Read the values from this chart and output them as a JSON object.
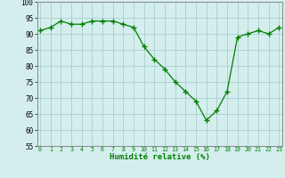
{
  "x": [
    0,
    1,
    2,
    3,
    4,
    5,
    6,
    7,
    8,
    9,
    10,
    11,
    12,
    13,
    14,
    15,
    16,
    17,
    18,
    19,
    20,
    21,
    22,
    23
  ],
  "y": [
    91,
    92,
    94,
    93,
    93,
    94,
    94,
    94,
    93,
    92,
    86,
    82,
    79,
    75,
    72,
    69,
    63,
    66,
    72,
    89,
    90,
    91,
    90,
    92
  ],
  "line_color": "#008000",
  "marker_color": "#008000",
  "bg_color": "#d4eeee",
  "grid_color": "#aacece",
  "xlabel": "Humidité relative (%)",
  "xlabel_color": "#008000",
  "ylim": [
    55,
    100
  ],
  "yticks": [
    55,
    60,
    65,
    70,
    75,
    80,
    85,
    90,
    95,
    100
  ],
  "xlim": [
    -0.3,
    23.3
  ],
  "xticks": [
    0,
    1,
    2,
    3,
    4,
    5,
    6,
    7,
    8,
    9,
    10,
    11,
    12,
    13,
    14,
    15,
    16,
    17,
    18,
    19,
    20,
    21,
    22,
    23
  ]
}
